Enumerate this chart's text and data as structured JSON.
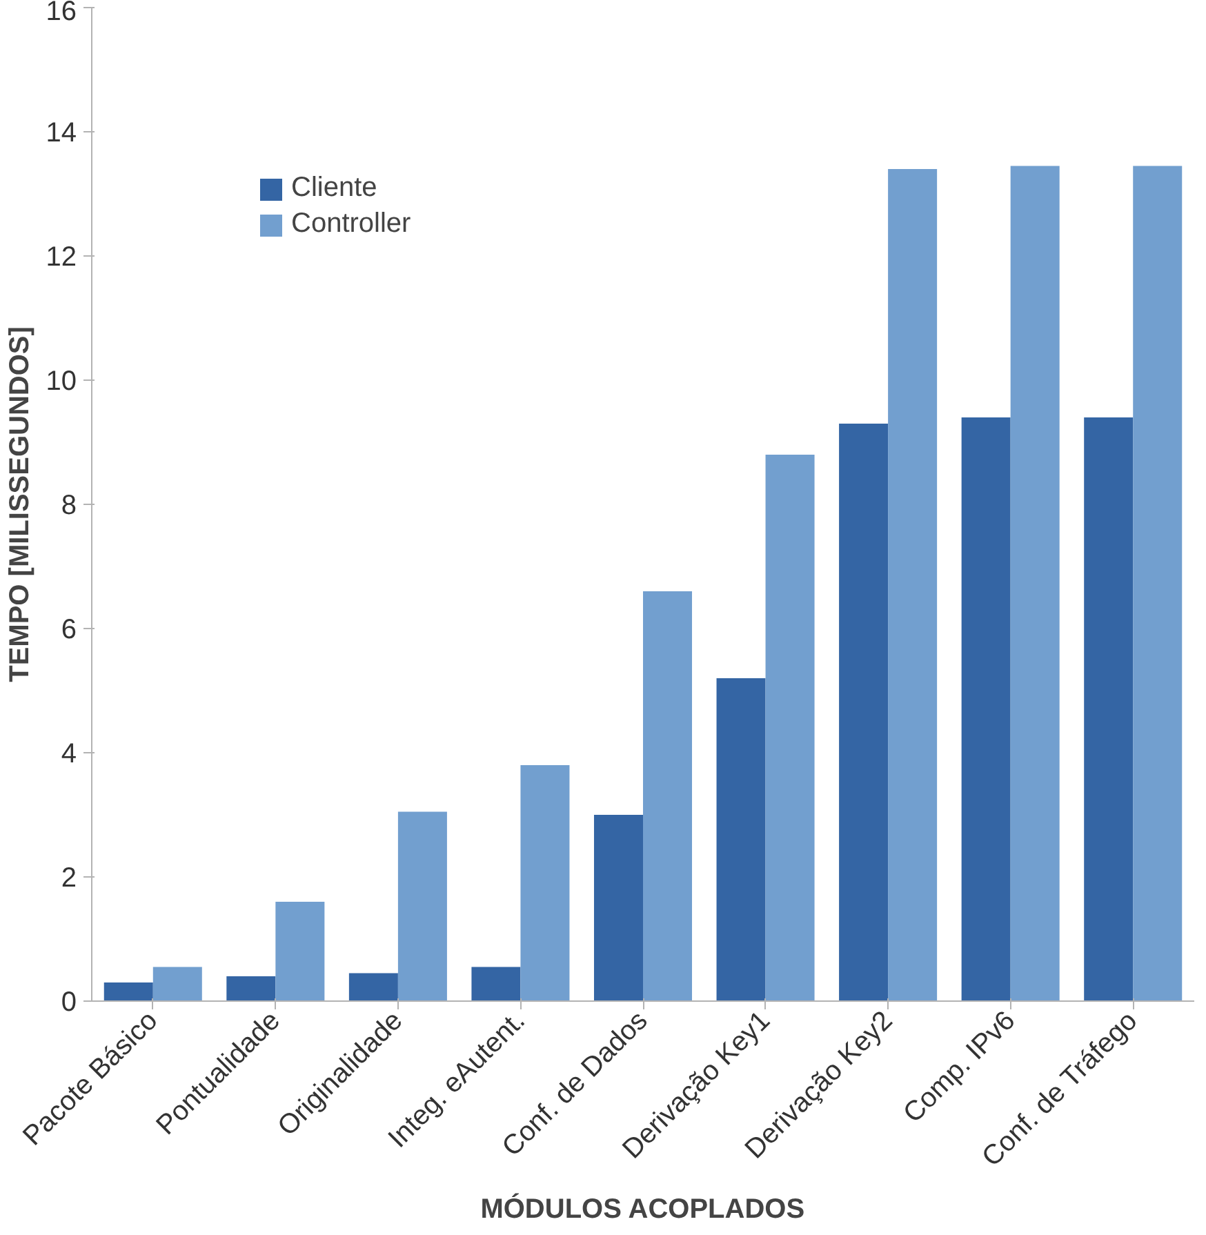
{
  "chart_data": {
    "type": "bar",
    "xlabel": "MÓDULOS ACOPLADOS",
    "ylabel": "TEMPO [MILISSEGUNDOS]",
    "categories": [
      "Pacote Básico",
      "Pontualidade",
      "Originalidade",
      "Integ. eAutent.",
      "Conf. de Dados",
      "Derivação Key1",
      "Derivação Key2",
      "Comp. IPv6",
      "Conf. de Tráfego"
    ],
    "series": [
      {
        "name": "Cliente",
        "color": "#3465a4",
        "values": [
          0.3,
          0.4,
          0.45,
          0.55,
          3.0,
          5.2,
          9.3,
          9.4,
          9.4
        ]
      },
      {
        "name": "Controller",
        "color": "#729fcf",
        "values": [
          0.55,
          1.6,
          3.05,
          3.8,
          6.6,
          8.8,
          13.4,
          13.45,
          13.45
        ]
      }
    ],
    "ylim": [
      0,
      16
    ],
    "yticks": [
      0,
      2,
      4,
      6,
      8,
      10,
      12,
      14,
      16
    ],
    "grid": false,
    "legend": "top left"
  }
}
